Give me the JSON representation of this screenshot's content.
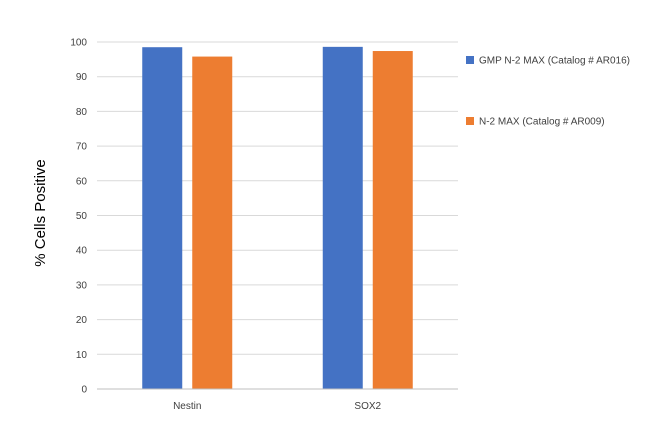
{
  "chart_data": {
    "type": "bar",
    "categories": [
      "Nestin",
      "SOX2"
    ],
    "series": [
      {
        "name": "GMP N-2 MAX (Catalog # AR016)",
        "values": [
          98.5,
          98.6
        ],
        "color": "#4472C4"
      },
      {
        "name": "N-2 MAX (Catalog # AR009)",
        "values": [
          95.8,
          97.4
        ],
        "color": "#ED7D31"
      }
    ],
    "title": "",
    "xlabel": "",
    "ylabel": "% Cells Positive",
    "ylim": [
      0,
      100
    ],
    "yticks": [
      "0",
      "10",
      "20",
      "30",
      "40",
      "50",
      "60",
      "70",
      "80",
      "90",
      "100"
    ],
    "grid": true,
    "legend_position": "right"
  }
}
